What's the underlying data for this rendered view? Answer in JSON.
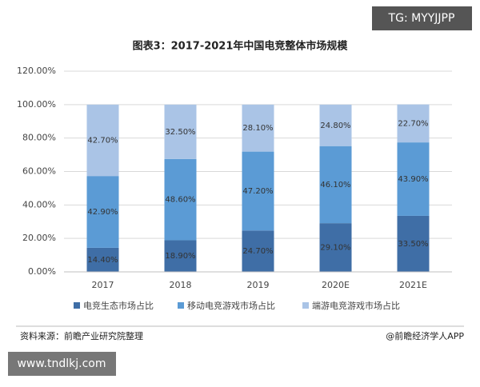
{
  "chart_data": {
    "type": "stacked_bar",
    "title": "图表3：2017-2021年中国电竞整体市场规模",
    "categories": [
      "2017",
      "2018",
      "2019",
      "2020E",
      "2021E"
    ],
    "series": [
      {
        "name": "电竞生态市场占比",
        "color": "#3f6ea6",
        "values": [
          14.4,
          18.9,
          24.7,
          29.1,
          33.5
        ],
        "value_labels": [
          "14.40%",
          "18.90%",
          "24.70%",
          "29.10%",
          "33.50%"
        ]
      },
      {
        "name": "移动电竞游戏市场占比",
        "color": "#5b9bd5",
        "values": [
          42.9,
          48.6,
          47.2,
          46.1,
          43.9
        ],
        "value_labels": [
          "42.90%",
          "48.60%",
          "47.20%",
          "46.10%",
          "43.90%"
        ]
      },
      {
        "name": "端游电竞游戏市场占比",
        "color": "#aac4e6",
        "values": [
          42.7,
          32.5,
          28.1,
          24.8,
          22.7
        ],
        "value_labels": [
          "42.70%",
          "32.50%",
          "28.10%",
          "24.80%",
          "22.70%"
        ]
      }
    ],
    "ylim": [
      0,
      120
    ],
    "yticks": [
      {
        "value": 0,
        "label": "0.00%"
      },
      {
        "value": 20,
        "label": "20.00%"
      },
      {
        "value": 40,
        "label": "40.00%"
      },
      {
        "value": 60,
        "label": "60.00%"
      },
      {
        "value": 80,
        "label": "80.00%"
      },
      {
        "value": 100,
        "label": "100.00%"
      },
      {
        "value": 120,
        "label": "120.00%"
      }
    ],
    "grid": true,
    "legend": "bottom"
  },
  "badge_top": "TG: MYYJJPP",
  "source": "资料来源：前瞻产业研究院整理",
  "credit": "@前瞻经济学人APP",
  "badge_bottom": "www.tndlkj.com"
}
